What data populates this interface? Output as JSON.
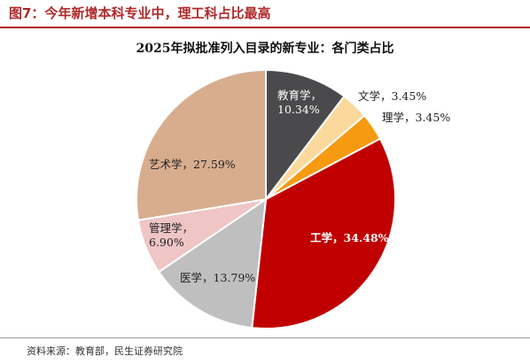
{
  "figure": {
    "title": "图7：今年新增本科专业中，理工科占比最高",
    "source": "资料来源：教育部，民生证券研究院"
  },
  "chart_data": {
    "type": "pie",
    "title": "2025年拟批准列入目录的新专业：各门类占比",
    "start": "12 o'clock",
    "direction": "clockwise",
    "slices": [
      {
        "label": "教育学",
        "value": 10.34,
        "value_text": "10.34%",
        "color": "#4a4a4c",
        "label_color": "#ffffff",
        "bold": false
      },
      {
        "label": "文学",
        "value": 3.45,
        "value_text": "3.45%",
        "color": "#fbd99c",
        "label_color": "#222222",
        "bold": false
      },
      {
        "label": "理学",
        "value": 3.45,
        "value_text": "3.45%",
        "color": "#f59a11",
        "label_color": "#222222",
        "bold": false
      },
      {
        "label": "工学",
        "value": 34.48,
        "value_text": "34.48%",
        "color": "#c00000",
        "label_color": "#ffffff",
        "bold": true
      },
      {
        "label": "医学",
        "value": 13.79,
        "value_text": "13.79%",
        "color": "#bfbfbf",
        "label_color": "#222222",
        "bold": false
      },
      {
        "label": "管理学",
        "value": 6.9,
        "value_text": "6.90%",
        "color": "#efc5c6",
        "label_color": "#222222",
        "bold": false
      },
      {
        "label": "艺术学",
        "value": 27.59,
        "value_text": "27.59%",
        "color": "#d8ad8e",
        "label_color": "#222222",
        "bold": false
      }
    ]
  }
}
